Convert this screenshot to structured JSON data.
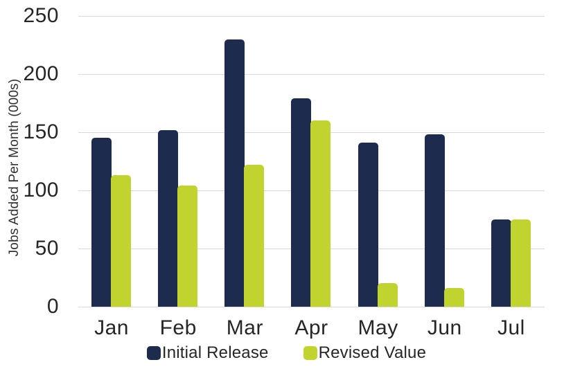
{
  "chart_data": {
    "type": "bar",
    "categories": [
      "Jan",
      "Feb",
      "Mar",
      "Apr",
      "May",
      "Jun",
      "Jul"
    ],
    "series": [
      {
        "name": "Initial Release",
        "color": "#1d2b4f",
        "values": [
          145,
          152,
          230,
          179,
          141,
          148,
          75
        ]
      },
      {
        "name": "Revised Value",
        "color": "#c1d32f",
        "values": [
          113,
          104,
          122,
          160,
          20,
          16,
          75
        ]
      }
    ],
    "title": "",
    "xlabel": "",
    "ylabel": "Jobs Added Per Month (000s)",
    "ylim": [
      0,
      250
    ],
    "yticks": [
      0,
      50,
      100,
      150,
      200,
      250
    ],
    "grid": "horizontal",
    "gridline_color": "#d9d9d9",
    "axis_text_color": "#262626",
    "legend_position": "bottom"
  }
}
